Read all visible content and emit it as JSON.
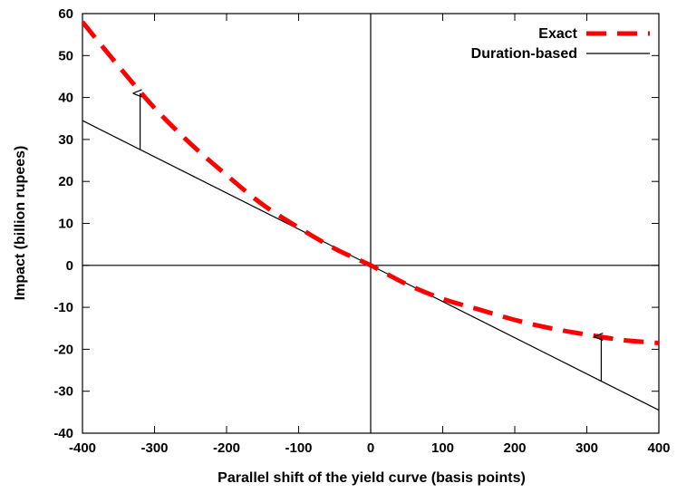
{
  "chart_data": {
    "type": "line",
    "title": "",
    "xlabel": "Parallel shift of the yield curve (basis points)",
    "ylabel": "Impact (billion rupees)",
    "xlim": [
      -400,
      400
    ],
    "ylim": [
      -40,
      60
    ],
    "xticks": [
      -400,
      -300,
      -200,
      -100,
      0,
      100,
      200,
      300,
      400
    ],
    "yticks": [
      -40,
      -30,
      -20,
      -10,
      0,
      10,
      20,
      30,
      40,
      50,
      60
    ],
    "grid": false,
    "legend_position": "top-right",
    "series": [
      {
        "name": "Exact",
        "color": "#ff0000",
        "style": "dashed",
        "x": [
          -400,
          -350,
          -300,
          -250,
          -200,
          -150,
          -100,
          -50,
          0,
          50,
          100,
          150,
          200,
          250,
          300,
          350,
          400
        ],
        "y": [
          58,
          47.5,
          37.5,
          29,
          21.5,
          14.5,
          9,
          4,
          0,
          -4.5,
          -8,
          -10.5,
          -13,
          -15,
          -16.5,
          -17.8,
          -18.5
        ]
      },
      {
        "name": "Duration-based",
        "color": "#000000",
        "style": "solid",
        "x": [
          -400,
          400
        ],
        "y": [
          34.5,
          -34.5
        ]
      }
    ],
    "annotations": [
      {
        "type": "arrow",
        "x": -320,
        "from_y": 27.5,
        "to_y": 41
      },
      {
        "type": "arrow",
        "x": 320,
        "from_y": -27.5,
        "to_y": -17
      }
    ]
  }
}
